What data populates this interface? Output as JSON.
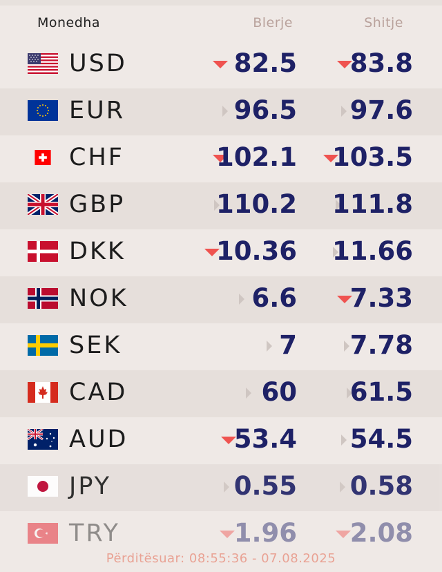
{
  "header": {
    "currency": "Monedha",
    "buy": "Blerje",
    "sell": "Shitje"
  },
  "rates": [
    {
      "code": "USD",
      "flag": "usa-flag-icon",
      "buy": "82.5",
      "buy_trend": "down",
      "sell": "83.8",
      "sell_trend": "down"
    },
    {
      "code": "EUR",
      "flag": "eu-flag-icon",
      "buy": "96.5",
      "buy_trend": "flat",
      "sell": "97.6",
      "sell_trend": "flat"
    },
    {
      "code": "CHF",
      "flag": "swiss-flag-icon",
      "buy": "102.1",
      "buy_trend": "down",
      "sell": "103.5",
      "sell_trend": "down"
    },
    {
      "code": "GBP",
      "flag": "uk-flag-icon",
      "buy": "110.2",
      "buy_trend": "flat",
      "sell": "111.8",
      "sell_trend": "flat"
    },
    {
      "code": "DKK",
      "flag": "denmark-flag-icon",
      "buy": "10.36",
      "buy_trend": "down",
      "sell": "11.66",
      "sell_trend": "flat"
    },
    {
      "code": "NOK",
      "flag": "norway-flag-icon",
      "buy": "6.6",
      "buy_trend": "flat",
      "sell": "7.33",
      "sell_trend": "down"
    },
    {
      "code": "SEK",
      "flag": "sweden-flag-icon",
      "buy": "7",
      "buy_trend": "flat",
      "sell": "7.78",
      "sell_trend": "flat"
    },
    {
      "code": "CAD",
      "flag": "canada-flag-icon",
      "buy": "60",
      "buy_trend": "flat",
      "sell": "61.5",
      "sell_trend": "flat"
    },
    {
      "code": "AUD",
      "flag": "australia-flag-icon",
      "buy": "53.4",
      "buy_trend": "down",
      "sell": "54.5",
      "sell_trend": "flat"
    },
    {
      "code": "JPY",
      "flag": "japan-flag-icon",
      "buy": "0.55",
      "buy_trend": "flat",
      "sell": "0.58",
      "sell_trend": "flat"
    },
    {
      "code": "TRY",
      "flag": "turkey-flag-icon",
      "buy": "1.96",
      "buy_trend": "down",
      "sell": "2.08",
      "sell_trend": "down"
    }
  ],
  "footer": {
    "updated": "Përditësuar: 08:55:36 - 07.08.2025"
  },
  "colors": {
    "value": "#1e2166",
    "down": "#ef5350",
    "flat": "#cfc6c2",
    "footer": "#e9a294"
  }
}
